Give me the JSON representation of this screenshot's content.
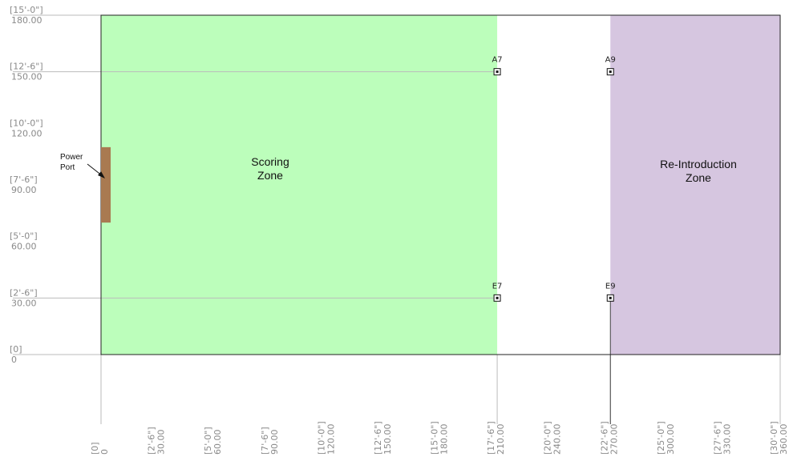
{
  "colors": {
    "scoring_zone": "#bcfebb",
    "reintro_zone": "#d6c6e0",
    "power_port": "#a97a51",
    "field_border": "#222222",
    "dim_line": "#bbbbbb",
    "dim_text": "#8a8a8a"
  },
  "zones": {
    "scoring": {
      "line1": "Scoring",
      "line2": "Zone",
      "x_range_in": [
        0,
        210
      ]
    },
    "reintro": {
      "line1": "Re-Introduction",
      "line2": "Zone",
      "x_range_in": [
        270,
        360
      ]
    }
  },
  "power_port": {
    "line1": "Power",
    "line2": "Port",
    "y_range_in": [
      70,
      110
    ]
  },
  "markers": [
    {
      "id": "A7",
      "label": "A7",
      "x_in": 210,
      "y_in": 150
    },
    {
      "id": "A9",
      "label": "A9",
      "x_in": 270,
      "y_in": 150
    },
    {
      "id": "E7",
      "label": "E7",
      "x_in": 210,
      "y_in": 30
    },
    {
      "id": "E9",
      "label": "E9",
      "x_in": 270,
      "y_in": 30
    }
  ],
  "y_axis": [
    {
      "value": 0,
      "ft": "[0]",
      "num": "0"
    },
    {
      "value": 30,
      "ft": "[2'-6\"]",
      "num": "30.00"
    },
    {
      "value": 60,
      "ft": "[5'-0\"]",
      "num": "60.00"
    },
    {
      "value": 90,
      "ft": "[7'-6\"]",
      "num": "90.00"
    },
    {
      "value": 120,
      "ft": "[10'-0\"]",
      "num": "120.00"
    },
    {
      "value": 150,
      "ft": "[12'-6\"]",
      "num": "150.00"
    },
    {
      "value": 180,
      "ft": "[15'-0\"]",
      "num": "180.00"
    }
  ],
  "x_axis": [
    {
      "value": 0,
      "ft": "[0]",
      "num": "0"
    },
    {
      "value": 30,
      "ft": "[2'-6\"]",
      "num": "30.00"
    },
    {
      "value": 60,
      "ft": "[5'-0\"]",
      "num": "60.00"
    },
    {
      "value": 90,
      "ft": "[7'-6\"]",
      "num": "90.00"
    },
    {
      "value": 120,
      "ft": "[10'-0\"]",
      "num": "120.00"
    },
    {
      "value": 150,
      "ft": "[12'-6\"]",
      "num": "150.00"
    },
    {
      "value": 180,
      "ft": "[15'-0\"]",
      "num": "180.00"
    },
    {
      "value": 210,
      "ft": "[17'-6\"]",
      "num": "210.00"
    },
    {
      "value": 240,
      "ft": "[20'-0\"]",
      "num": "240.00"
    },
    {
      "value": 270,
      "ft": "[22'-6\"]",
      "num": "270.00"
    },
    {
      "value": 300,
      "ft": "[25'-0\"]",
      "num": "300.00"
    },
    {
      "value": 330,
      "ft": "[27'-6\"]",
      "num": "330.00"
    },
    {
      "value": 360,
      "ft": "[30'-0\"]",
      "num": "360.00"
    }
  ],
  "field": {
    "width_in": 360,
    "height_in": 180
  }
}
